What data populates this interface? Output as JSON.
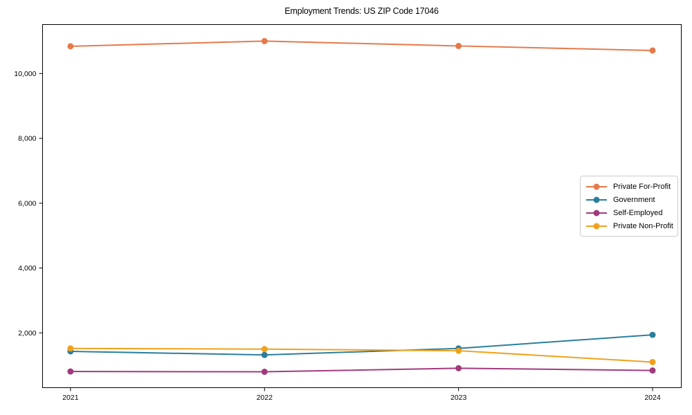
{
  "chart_data": {
    "type": "line",
    "title": "Employment Trends: US ZIP Code 17046",
    "x": [
      2021,
      2022,
      2023,
      2024
    ],
    "xtick_labels": [
      "2021",
      "2022",
      "2023",
      "2024"
    ],
    "yticks": [
      2000,
      4000,
      6000,
      8000,
      10000
    ],
    "ytick_labels": [
      "2,000",
      "4,000",
      "6,000",
      "8,000",
      "10,000"
    ],
    "xlim": [
      2020.856,
      2024.148
    ],
    "ylim": [
      310,
      11510
    ],
    "grid": false,
    "legend_position": "center-right",
    "frame_color": "#000000",
    "series": [
      {
        "name": "Private For-Profit",
        "color": "#e6794b",
        "values": [
          10840,
          11000,
          10850,
          10710
        ]
      },
      {
        "name": "Government",
        "color": "#2b7e9c",
        "values": [
          1430,
          1320,
          1520,
          1940
        ]
      },
      {
        "name": "Self-Employed",
        "color": "#a13a7c",
        "values": [
          810,
          800,
          910,
          840
        ]
      },
      {
        "name": "Private Non-Profit",
        "color": "#f0a11b",
        "values": [
          1520,
          1500,
          1450,
          1100
        ]
      }
    ]
  }
}
